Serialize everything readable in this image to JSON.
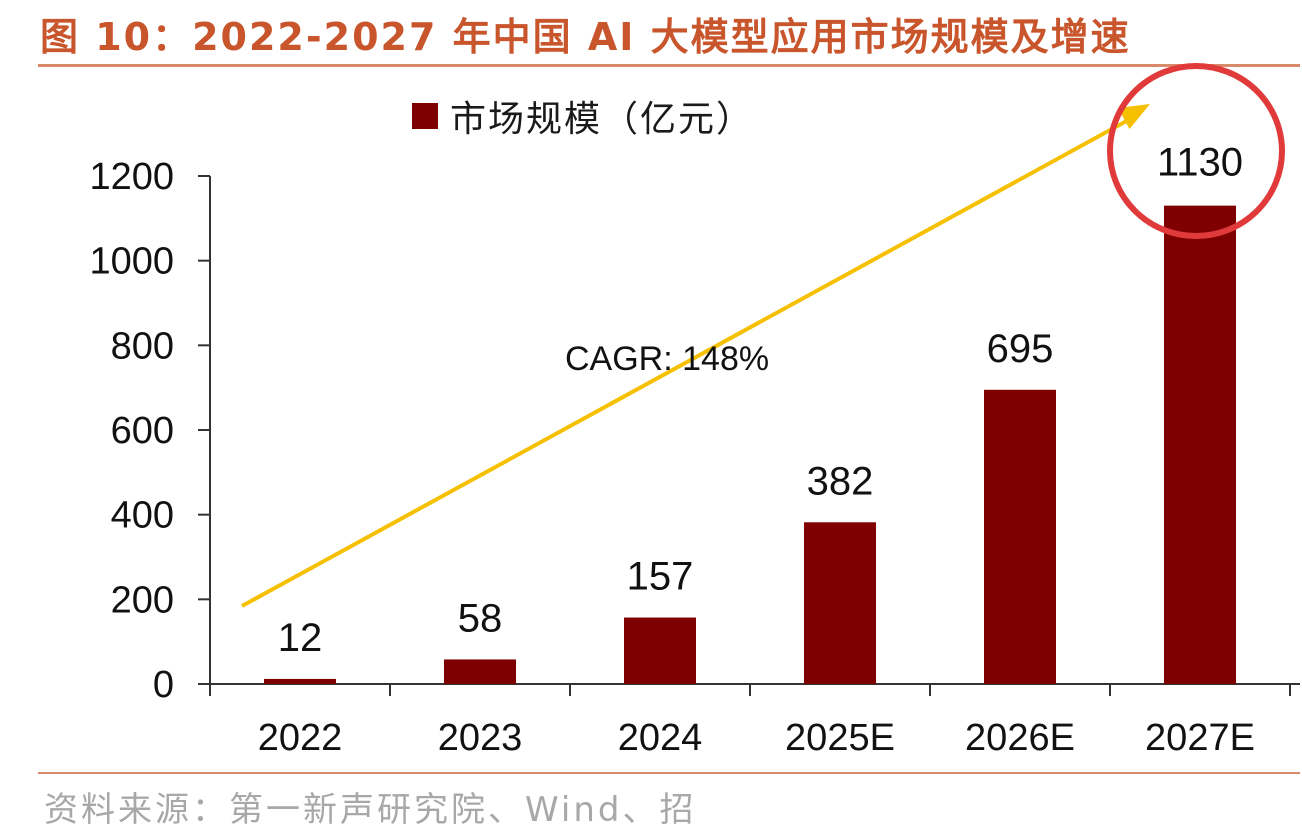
{
  "title": "图 10：2022-2027 年中国 AI 大模型应用市场规模及增速",
  "source": "资料来源：第一新声研究院、Wind、招",
  "colors": {
    "bar": "#7f0000",
    "arrow": "#f5c000",
    "highlight": "#e03a3a",
    "accent": "#c8552b"
  },
  "chart_data": {
    "type": "bar",
    "categories": [
      "2022",
      "2023",
      "2024",
      "2025E",
      "2026E",
      "2027E"
    ],
    "series": [
      {
        "name": "市场规模（亿元）",
        "values": [
          12,
          58,
          157,
          382,
          695,
          1130
        ]
      }
    ],
    "data_labels": [
      "12",
      "58",
      "157",
      "382",
      "695",
      "1130"
    ],
    "ylim": [
      0,
      1200
    ],
    "yticks": [
      "0",
      "200",
      "400",
      "600",
      "800",
      "1000",
      "1200"
    ],
    "annotation": "CAGR:  148%",
    "highlighted_category": "2027E",
    "legend_position": "top-center"
  }
}
